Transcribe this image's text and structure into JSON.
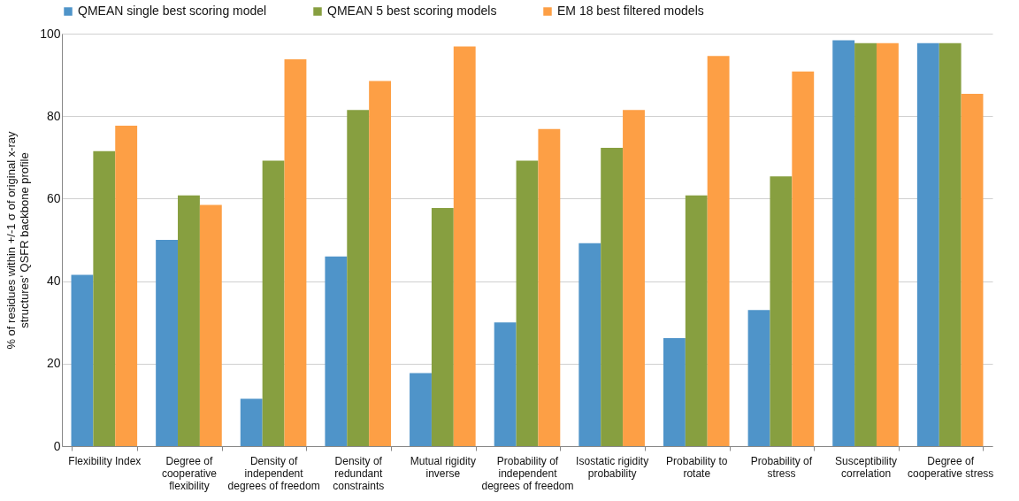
{
  "chart_data": {
    "type": "bar",
    "ylabel": "% of residues within +/-1 σ of original x-ray structures' QSFR backbone profile",
    "categories": [
      "Flexibility Index",
      "Degree of cooperative flexibility",
      "Density of independent degrees of freedom",
      "Density of redundant constraints",
      "Mutual rigidity inverse",
      "Probability of independent degrees of freedom",
      "Isostatic rigidity probability",
      "Probability to rotate",
      "Probability of stress",
      "Susceptibility correlation",
      "Degree of cooperative stress"
    ],
    "series": [
      {
        "name": "QMEAN single best scoring model",
        "color": "#4f94c9",
        "values": [
          41.5,
          50,
          11.5,
          46,
          17.7,
          30,
          49.2,
          26.2,
          33,
          98.4,
          97.7
        ]
      },
      {
        "name": "QMEAN 5 best scoring models",
        "color": "#879f40",
        "values": [
          71.5,
          60.8,
          69.2,
          81.5,
          57.7,
          69.2,
          72.3,
          60.8,
          65.4,
          97.7,
          97.7
        ]
      },
      {
        "name": "EM 18 best filtered models",
        "color": "#fd9f45",
        "values": [
          77.7,
          58.5,
          93.8,
          88.5,
          96.9,
          76.9,
          81.5,
          94.6,
          90.8,
          97.7,
          85.4
        ]
      }
    ],
    "ylim": [
      0,
      100
    ],
    "yticks": [
      0,
      20,
      40,
      60,
      80,
      100
    ],
    "grid": "y",
    "legend": "top"
  }
}
